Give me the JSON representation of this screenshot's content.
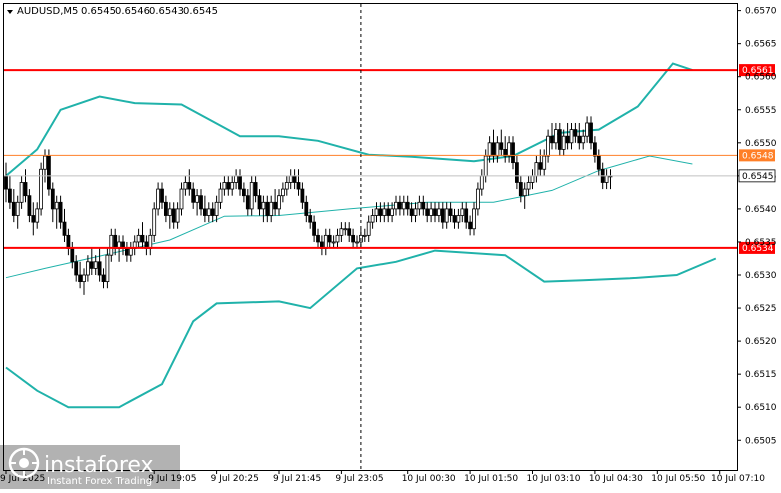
{
  "chart_data": {
    "type": "candlestick",
    "symbol": "AUDUSD,M5",
    "quote": {
      "open": "0.6545",
      "high": "0.6546",
      "low": "0.6543",
      "close": "0.6545"
    },
    "ylim": [
      0.65005,
      0.6571
    ],
    "y_ticks": [
      "0.6570",
      "0.6565",
      "0.6560",
      "0.6555",
      "0.6550",
      "0.6545",
      "0.6540",
      "0.6535",
      "0.6530",
      "0.6525",
      "0.6520",
      "0.6515",
      "0.6510",
      "0.6505"
    ],
    "x_ticks": [
      "9 Jul 2025",
      "9 Jul 19:05",
      "9 Jul 20:25",
      "9 Jul 21:45",
      "9 Jul 23:05",
      "10 Jul 00:30",
      "10 Jul 01:50",
      "10 Jul 03:10",
      "10 Jul 04:30",
      "10 Jul 05:50",
      "10 Jul 07:10"
    ],
    "x_tick_bar_index": [
      0,
      38,
      54,
      70,
      86,
      103,
      119,
      135,
      151,
      167,
      183
    ],
    "levels": [
      {
        "value": 0.6561,
        "label": "0.6561",
        "color": "#ff0000"
      },
      {
        "value": 0.65481,
        "label": "0.6548",
        "color": "#ff7f27"
      },
      {
        "value": 0.65341,
        "label": "0.6534",
        "color": "#ff0000"
      }
    ],
    "current_price": {
      "value": 0.6545,
      "label": "0.6545"
    },
    "cursor_bar_index": 91,
    "bollinger": {
      "upper": [
        [
          0,
          0.6545
        ],
        [
          8,
          0.6549
        ],
        [
          14,
          0.6555
        ],
        [
          24,
          0.6557
        ],
        [
          33,
          0.6556
        ],
        [
          45,
          0.65558
        ],
        [
          60,
          0.6551
        ],
        [
          70,
          0.6551
        ],
        [
          80,
          0.65503
        ],
        [
          93,
          0.65482
        ],
        [
          104,
          0.65479
        ],
        [
          120,
          0.65472
        ],
        [
          130,
          0.6548
        ],
        [
          142,
          0.65515
        ],
        [
          152,
          0.6552
        ],
        [
          162,
          0.65555
        ],
        [
          171,
          0.6562
        ],
        [
          176,
          0.6561
        ]
      ],
      "middle": [
        [
          0,
          0.65296
        ],
        [
          10,
          0.6531
        ],
        [
          25,
          0.6533
        ],
        [
          42,
          0.65353
        ],
        [
          56,
          0.65389
        ],
        [
          70,
          0.6539
        ],
        [
          88,
          0.654
        ],
        [
          108,
          0.6541
        ],
        [
          125,
          0.6541
        ],
        [
          140,
          0.65428
        ],
        [
          152,
          0.65458
        ],
        [
          165,
          0.6548
        ],
        [
          176,
          0.65468
        ]
      ],
      "lower": [
        [
          0,
          0.6516
        ],
        [
          8,
          0.65125
        ],
        [
          16,
          0.651
        ],
        [
          29,
          0.651
        ],
        [
          40,
          0.65135
        ],
        [
          48,
          0.6523
        ],
        [
          54,
          0.65257
        ],
        [
          70,
          0.6526
        ],
        [
          78,
          0.6525
        ],
        [
          90,
          0.6531
        ],
        [
          100,
          0.6532
        ],
        [
          110,
          0.65337
        ],
        [
          128,
          0.6533
        ],
        [
          138,
          0.6529
        ],
        [
          148,
          0.65292
        ],
        [
          160,
          0.65295
        ],
        [
          172,
          0.653
        ],
        [
          182,
          0.65325
        ]
      ]
    },
    "candles_ohlc": [
      [
        0.6545,
        0.6547,
        0.6541,
        0.6543
      ],
      [
        0.6543,
        0.6545,
        0.654,
        0.6541
      ],
      [
        0.6541,
        0.6543,
        0.6538,
        0.6539
      ],
      [
        0.6539,
        0.6542,
        0.6537,
        0.6541
      ],
      [
        0.6541,
        0.6545,
        0.654,
        0.6544
      ],
      [
        0.6544,
        0.6546,
        0.6541,
        0.6542
      ],
      [
        0.6542,
        0.6543,
        0.6538,
        0.6539
      ],
      [
        0.6539,
        0.6541,
        0.6536,
        0.6538
      ],
      [
        0.6538,
        0.6541,
        0.6537,
        0.654
      ],
      [
        0.654,
        0.6547,
        0.6539,
        0.6546
      ],
      [
        0.6546,
        0.6549,
        0.6544,
        0.6548
      ],
      [
        0.6548,
        0.6549,
        0.6542,
        0.6543
      ],
      [
        0.6543,
        0.6544,
        0.6538,
        0.654
      ],
      [
        0.654,
        0.6542,
        0.6537,
        0.6541
      ],
      [
        0.6541,
        0.6542,
        0.6537,
        0.6538
      ],
      [
        0.6538,
        0.654,
        0.6535,
        0.6536
      ],
      [
        0.6536,
        0.6537,
        0.6533,
        0.6534
      ],
      [
        0.6534,
        0.6535,
        0.6531,
        0.6532
      ],
      [
        0.6532,
        0.6533,
        0.6529,
        0.653
      ],
      [
        0.653,
        0.6532,
        0.6528,
        0.6529
      ],
      [
        0.6529,
        0.6531,
        0.6527,
        0.653
      ],
      [
        0.653,
        0.6533,
        0.6529,
        0.6532
      ],
      [
        0.6532,
        0.6534,
        0.653,
        0.6531
      ],
      [
        0.6531,
        0.6533,
        0.653,
        0.6532
      ],
      [
        0.6532,
        0.6534,
        0.6529,
        0.653
      ],
      [
        0.653,
        0.6531,
        0.6528,
        0.6529
      ],
      [
        0.6529,
        0.6534,
        0.6528,
        0.6533
      ],
      [
        0.6533,
        0.6537,
        0.6532,
        0.6536
      ],
      [
        0.6536,
        0.6537,
        0.6533,
        0.6534
      ],
      [
        0.6534,
        0.6536,
        0.6532,
        0.6535
      ],
      [
        0.6535,
        0.6536,
        0.6533,
        0.6534
      ],
      [
        0.6534,
        0.6535,
        0.6532,
        0.6533
      ],
      [
        0.6533,
        0.6535,
        0.6532,
        0.6534
      ],
      [
        0.6534,
        0.6536,
        0.6533,
        0.6535
      ],
      [
        0.6535,
        0.6537,
        0.6534,
        0.6536
      ],
      [
        0.6536,
        0.6538,
        0.6534,
        0.6535
      ],
      [
        0.6535,
        0.6536,
        0.6533,
        0.6534
      ],
      [
        0.6534,
        0.6537,
        0.6533,
        0.6536
      ],
      [
        0.6536,
        0.6541,
        0.6535,
        0.654
      ],
      [
        0.654,
        0.6544,
        0.6539,
        0.6543
      ],
      [
        0.6543,
        0.6544,
        0.654,
        0.6541
      ],
      [
        0.6541,
        0.6542,
        0.6538,
        0.6539
      ],
      [
        0.6539,
        0.6541,
        0.6537,
        0.654
      ],
      [
        0.654,
        0.6541,
        0.6537,
        0.6538
      ],
      [
        0.6538,
        0.6541,
        0.6537,
        0.654
      ],
      [
        0.654,
        0.6544,
        0.6539,
        0.6543
      ],
      [
        0.6543,
        0.6545,
        0.6542,
        0.6544
      ],
      [
        0.6544,
        0.6546,
        0.6542,
        0.6543
      ],
      [
        0.6543,
        0.6544,
        0.654,
        0.6541
      ],
      [
        0.6541,
        0.6543,
        0.6539,
        0.6542
      ],
      [
        0.6542,
        0.6543,
        0.6539,
        0.654
      ],
      [
        0.654,
        0.6542,
        0.6538,
        0.6539
      ],
      [
        0.6539,
        0.6541,
        0.6538,
        0.654
      ],
      [
        0.654,
        0.6541,
        0.6538,
        0.6539
      ],
      [
        0.6539,
        0.6542,
        0.6538,
        0.6541
      ],
      [
        0.6541,
        0.6544,
        0.654,
        0.6543
      ],
      [
        0.6543,
        0.6545,
        0.6542,
        0.6544
      ],
      [
        0.6544,
        0.6545,
        0.6542,
        0.6543
      ],
      [
        0.6543,
        0.6545,
        0.6542,
        0.6544
      ],
      [
        0.6544,
        0.6546,
        0.6543,
        0.6545
      ],
      [
        0.6545,
        0.6546,
        0.6542,
        0.6543
      ],
      [
        0.6543,
        0.6544,
        0.6541,
        0.6542
      ],
      [
        0.6542,
        0.6543,
        0.6539,
        0.654
      ],
      [
        0.654,
        0.6545,
        0.6539,
        0.6544
      ],
      [
        0.6544,
        0.6545,
        0.6541,
        0.6542
      ],
      [
        0.6542,
        0.6543,
        0.6539,
        0.654
      ],
      [
        0.654,
        0.6542,
        0.6538,
        0.6541
      ],
      [
        0.6541,
        0.6542,
        0.6538,
        0.6539
      ],
      [
        0.6539,
        0.6542,
        0.6538,
        0.6541
      ],
      [
        0.6541,
        0.6543,
        0.6539,
        0.654
      ],
      [
        0.654,
        0.6543,
        0.6539,
        0.6542
      ],
      [
        0.6542,
        0.6544,
        0.6541,
        0.6543
      ],
      [
        0.6543,
        0.6545,
        0.6542,
        0.6544
      ],
      [
        0.6544,
        0.6546,
        0.6543,
        0.6545
      ],
      [
        0.6545,
        0.6546,
        0.6543,
        0.6544
      ],
      [
        0.6544,
        0.6546,
        0.6542,
        0.6543
      ],
      [
        0.6543,
        0.6544,
        0.654,
        0.6541
      ],
      [
        0.6541,
        0.6542,
        0.6538,
        0.6539
      ],
      [
        0.6539,
        0.654,
        0.6537,
        0.6538
      ],
      [
        0.6538,
        0.6539,
        0.6535,
        0.6536
      ],
      [
        0.6536,
        0.6537,
        0.6534,
        0.6535
      ],
      [
        0.6535,
        0.6536,
        0.6533,
        0.6534
      ],
      [
        0.6534,
        0.6537,
        0.6533,
        0.6536
      ],
      [
        0.6536,
        0.6537,
        0.6534,
        0.6535
      ],
      [
        0.6535,
        0.6536,
        0.6534,
        0.6535
      ],
      [
        0.6535,
        0.6537,
        0.6534,
        0.6536
      ],
      [
        0.6536,
        0.6538,
        0.6535,
        0.6537
      ],
      [
        0.6537,
        0.6538,
        0.6536,
        0.6537
      ],
      [
        0.6537,
        0.6538,
        0.6535,
        0.6536
      ],
      [
        0.6536,
        0.6537,
        0.6534,
        0.6535
      ],
      [
        0.6535,
        0.6536,
        0.6534,
        0.6535
      ],
      [
        0.6535,
        0.6537,
        0.6534,
        0.6536
      ],
      [
        0.6536,
        0.6537,
        0.6535,
        0.6536
      ],
      [
        0.6536,
        0.6539,
        0.6535,
        0.6538
      ],
      [
        0.6538,
        0.654,
        0.6537,
        0.6539
      ],
      [
        0.6539,
        0.6541,
        0.6538,
        0.654
      ],
      [
        0.654,
        0.6541,
        0.6538,
        0.6539
      ],
      [
        0.6539,
        0.6541,
        0.6538,
        0.654
      ],
      [
        0.654,
        0.6541,
        0.6538,
        0.6539
      ],
      [
        0.6539,
        0.6541,
        0.6538,
        0.654
      ],
      [
        0.654,
        0.6542,
        0.6539,
        0.6541
      ],
      [
        0.6541,
        0.6542,
        0.6539,
        0.654
      ],
      [
        0.654,
        0.6542,
        0.6539,
        0.6541
      ],
      [
        0.6541,
        0.6542,
        0.6539,
        0.654
      ],
      [
        0.654,
        0.6541,
        0.6538,
        0.6539
      ],
      [
        0.6539,
        0.6541,
        0.6538,
        0.654
      ],
      [
        0.654,
        0.6542,
        0.6539,
        0.6541
      ],
      [
        0.6541,
        0.6542,
        0.6539,
        0.654
      ],
      [
        0.654,
        0.6541,
        0.6538,
        0.6539
      ],
      [
        0.6539,
        0.6541,
        0.6538,
        0.654
      ],
      [
        0.654,
        0.6541,
        0.6538,
        0.6539
      ],
      [
        0.6539,
        0.6541,
        0.6538,
        0.654
      ],
      [
        0.654,
        0.6541,
        0.6537,
        0.6538
      ],
      [
        0.6538,
        0.6541,
        0.6537,
        0.654
      ],
      [
        0.654,
        0.6541,
        0.6538,
        0.6539
      ],
      [
        0.6539,
        0.654,
        0.6537,
        0.6538
      ],
      [
        0.6538,
        0.654,
        0.6537,
        0.6539
      ],
      [
        0.6539,
        0.6541,
        0.6538,
        0.654
      ],
      [
        0.654,
        0.6541,
        0.6537,
        0.6538
      ],
      [
        0.6538,
        0.6539,
        0.6536,
        0.6537
      ],
      [
        0.6537,
        0.6541,
        0.6536,
        0.654
      ],
      [
        0.654,
        0.6544,
        0.6539,
        0.6543
      ],
      [
        0.6543,
        0.6546,
        0.6542,
        0.6545
      ],
      [
        0.6545,
        0.6549,
        0.6544,
        0.6548
      ],
      [
        0.6548,
        0.6551,
        0.6547,
        0.655
      ],
      [
        0.655,
        0.6552,
        0.6547,
        0.6548
      ],
      [
        0.6548,
        0.6551,
        0.6547,
        0.655
      ],
      [
        0.655,
        0.6552,
        0.6548,
        0.6549
      ],
      [
        0.6549,
        0.6551,
        0.6547,
        0.6548
      ],
      [
        0.6548,
        0.6551,
        0.6547,
        0.655
      ],
      [
        0.655,
        0.6551,
        0.6546,
        0.6547
      ],
      [
        0.6547,
        0.6548,
        0.6543,
        0.6544
      ],
      [
        0.6544,
        0.6545,
        0.6541,
        0.6542
      ],
      [
        0.6542,
        0.6544,
        0.654,
        0.6543
      ],
      [
        0.6543,
        0.6545,
        0.6542,
        0.6544
      ],
      [
        0.6544,
        0.6546,
        0.6543,
        0.6545
      ],
      [
        0.6545,
        0.6548,
        0.6544,
        0.6547
      ],
      [
        0.6547,
        0.6549,
        0.6545,
        0.6546
      ],
      [
        0.6546,
        0.6549,
        0.6545,
        0.6548
      ],
      [
        0.6548,
        0.6552,
        0.6547,
        0.6551
      ],
      [
        0.6551,
        0.6553,
        0.6549,
        0.655
      ],
      [
        0.655,
        0.6553,
        0.6549,
        0.6552
      ],
      [
        0.6552,
        0.6553,
        0.6548,
        0.6549
      ],
      [
        0.6549,
        0.6552,
        0.6548,
        0.6551
      ],
      [
        0.6551,
        0.6553,
        0.6549,
        0.655
      ],
      [
        0.655,
        0.6553,
        0.6549,
        0.6552
      ],
      [
        0.6552,
        0.6553,
        0.655,
        0.6551
      ],
      [
        0.6551,
        0.6553,
        0.6549,
        0.655
      ],
      [
        0.655,
        0.6552,
        0.6549,
        0.6551
      ],
      [
        0.6551,
        0.6554,
        0.655,
        0.6553
      ],
      [
        0.6553,
        0.6554,
        0.6549,
        0.655
      ],
      [
        0.655,
        0.6551,
        0.6547,
        0.6548
      ],
      [
        0.6548,
        0.6549,
        0.6545,
        0.6546
      ],
      [
        0.6546,
        0.6547,
        0.6543,
        0.6544
      ],
      [
        0.6544,
        0.6546,
        0.6543,
        0.6545
      ],
      [
        0.6545,
        0.6546,
        0.6543,
        0.6545
      ]
    ]
  },
  "watermark": {
    "brand": "instaforex",
    "tagline": "Instant Forex Trading"
  }
}
